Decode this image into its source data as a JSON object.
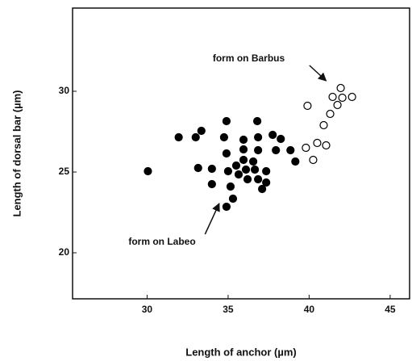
{
  "chart_data": {
    "type": "scatter",
    "x_label": "Length of anchor (µm)",
    "y_label": "Length of dorsal bar (µm)",
    "xlim": [
      25.4,
      46.2
    ],
    "xticks": [
      30,
      35,
      40,
      45
    ],
    "ylim": [
      17.15,
      35.15
    ],
    "yticks": [
      20,
      25,
      30
    ],
    "series": [
      {
        "color": "#000000",
        "filled": true,
        "x": [
          30.05,
          31.95,
          33,
          33.35,
          33.15,
          34,
          34,
          34.9,
          34.75,
          34.9,
          35,
          35.15,
          34.9,
          35.3,
          35.5,
          35.65,
          35.95,
          35.95,
          35.95,
          36.1,
          36.2,
          36.55,
          36.65,
          36.8,
          36.85,
          36.85,
          36.85,
          37.1,
          37.35,
          37.35,
          37.75,
          37.95,
          38.25,
          38.85,
          39.15
        ],
        "values": [
          25.05,
          27.15,
          27.15,
          27.55,
          25.25,
          25.2,
          24.25,
          28.15,
          27.15,
          26.15,
          25.05,
          24.1,
          22.85,
          23.35,
          25.4,
          24.85,
          27,
          26.4,
          25.75,
          25.15,
          24.55,
          25.65,
          25.15,
          28.15,
          27.15,
          26.35,
          24.55,
          23.95,
          25.05,
          24.35,
          27.3,
          26.35,
          27.05,
          26.35,
          25.65
        ]
      },
      {
        "color": "#000000",
        "filled": false,
        "x": [
          39.9,
          39.8,
          40.25,
          40.5,
          41.05,
          40.9,
          41.3,
          41.45,
          41.75,
          41.95,
          42.05,
          42.65
        ],
        "values": [
          29.1,
          26.5,
          25.75,
          26.8,
          26.65,
          27.9,
          28.6,
          29.65,
          29.15,
          30.2,
          29.6,
          29.65
        ]
      }
    ],
    "annotations": [
      {
        "text": "form on Barbus",
        "x": 34.05,
        "y": 32,
        "arrow_to": [
          41.05,
          30.65
        ]
      },
      {
        "text": "form on Labeo",
        "x": 28.85,
        "y": 20.65,
        "arrow_to": [
          34.45,
          23.05
        ]
      }
    ]
  }
}
